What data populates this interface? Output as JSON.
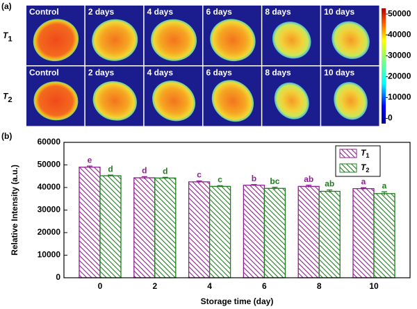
{
  "chart_data": [
    {
      "type": "image",
      "panel_label": "(a)",
      "rows": [
        {
          "label": "T",
          "subscript": "1",
          "columns": [
            "Control",
            "2 days",
            "4 days",
            "6 days",
            "8 days",
            "10 days"
          ]
        },
        {
          "label": "T",
          "subscript": "2",
          "columns": [
            "Control",
            "2 days",
            "4 days",
            "6 days",
            "8 days",
            "10 days"
          ]
        }
      ],
      "colorbar": {
        "lim": [
          -2500,
          52700
        ],
        "ticks": [
          50000,
          40000,
          30000,
          20000,
          10000,
          0
        ]
      }
    },
    {
      "type": "bar",
      "panel_label": "(b)",
      "xlabel": "Storage time (day)",
      "ylabel": "Relative Intensity (a.u.)",
      "categories": [
        "0",
        "2",
        "4",
        "6",
        "8",
        "10"
      ],
      "ylim": [
        0,
        60000
      ],
      "yticks": [
        0,
        10000,
        20000,
        30000,
        40000,
        50000,
        60000
      ],
      "legend": "upper right",
      "series": [
        {
          "name": "T",
          "subscript": "1",
          "color": "#8e1f8e",
          "values": [
            49000,
            44300,
            42500,
            41000,
            40500,
            39500
          ],
          "errors": [
            500,
            500,
            400,
            300,
            500,
            400
          ],
          "letters": [
            "e",
            "d",
            "c",
            "b",
            "ab",
            "a"
          ]
        },
        {
          "name": "T",
          "subscript": "2",
          "color": "#1e7d1e",
          "values": [
            45200,
            44200,
            40500,
            39600,
            38300,
            37300
          ],
          "errors": [
            300,
            300,
            300,
            500,
            600,
            800
          ],
          "letters": [
            "d",
            "d",
            "c",
            "bc",
            "ab",
            "a"
          ]
        }
      ]
    }
  ]
}
